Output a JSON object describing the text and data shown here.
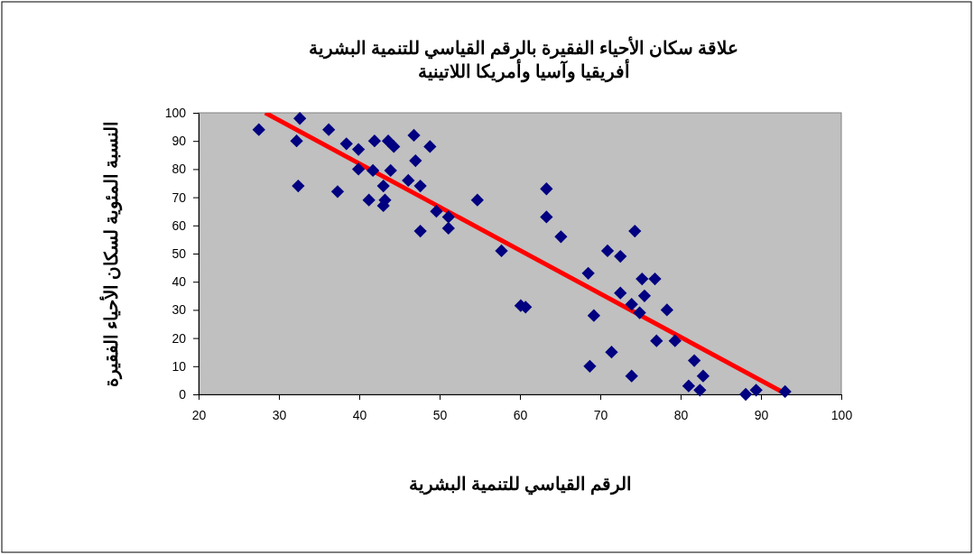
{
  "chart_data": {
    "type": "scatter",
    "title": "علاقة سكان الأحياء الفقيرة بالرقم القياسي للتنمية البشرية",
    "subtitle": "أفريقيا وآسيا وأمريكا اللاتينية",
    "xlabel": "الرقم القياسي للتنمية البشرية",
    "ylabel": "النسبة المئوية لسكان الأحياء الفقيرة",
    "xlim": [
      20,
      100
    ],
    "xticks": [
      20,
      30,
      40,
      50,
      60,
      70,
      80,
      90,
      100
    ],
    "ylim": [
      0,
      100
    ],
    "yticks": [
      0,
      10,
      20,
      30,
      40,
      50,
      60,
      70,
      80,
      90,
      100
    ],
    "grid": false,
    "marker": "diamond",
    "series": [
      {
        "color": "#000080",
        "x": [
          27.5,
          32.6,
          32.2,
          32.4,
          36.2,
          37.3,
          38.4,
          39.9,
          39.9,
          41.9,
          41.2,
          41.7,
          43.9,
          43,
          43.2,
          43,
          43.6,
          44.3,
          46.8,
          47,
          48.8,
          46.1,
          47.6,
          47.6,
          49.6,
          51.1,
          51.1,
          54.7,
          57.7,
          60.1,
          60.7,
          63.3,
          63.3,
          65.1,
          68.5,
          69.2,
          68.7,
          70.9,
          72.5,
          71.4,
          74.3,
          72.5,
          73.9,
          74.9,
          75.2,
          75.5,
          76.8,
          73.9,
          77,
          78.3,
          79.3,
          81.7,
          81,
          82.8,
          82.4,
          88.1,
          89.4,
          93
        ],
        "values": [
          94,
          98,
          90,
          74,
          94,
          72,
          89,
          87,
          80,
          90,
          69,
          79.5,
          79.5,
          74,
          69,
          67,
          90,
          88,
          92,
          83,
          88,
          76,
          74,
          58,
          65,
          63,
          59,
          69,
          51,
          31.5,
          31,
          73,
          63,
          56,
          43,
          28,
          10,
          51,
          49,
          15,
          58,
          36,
          32,
          29,
          41,
          35,
          41,
          6.5,
          19,
          30,
          19,
          12,
          3,
          6.5,
          1.5,
          0,
          1.5,
          1
        ]
      },
      {
        "type": "line",
        "color": "#ff0000",
        "x": [
          28.3,
          93.2
        ],
        "values": [
          100,
          0
        ],
        "marker": "none"
      }
    ]
  }
}
